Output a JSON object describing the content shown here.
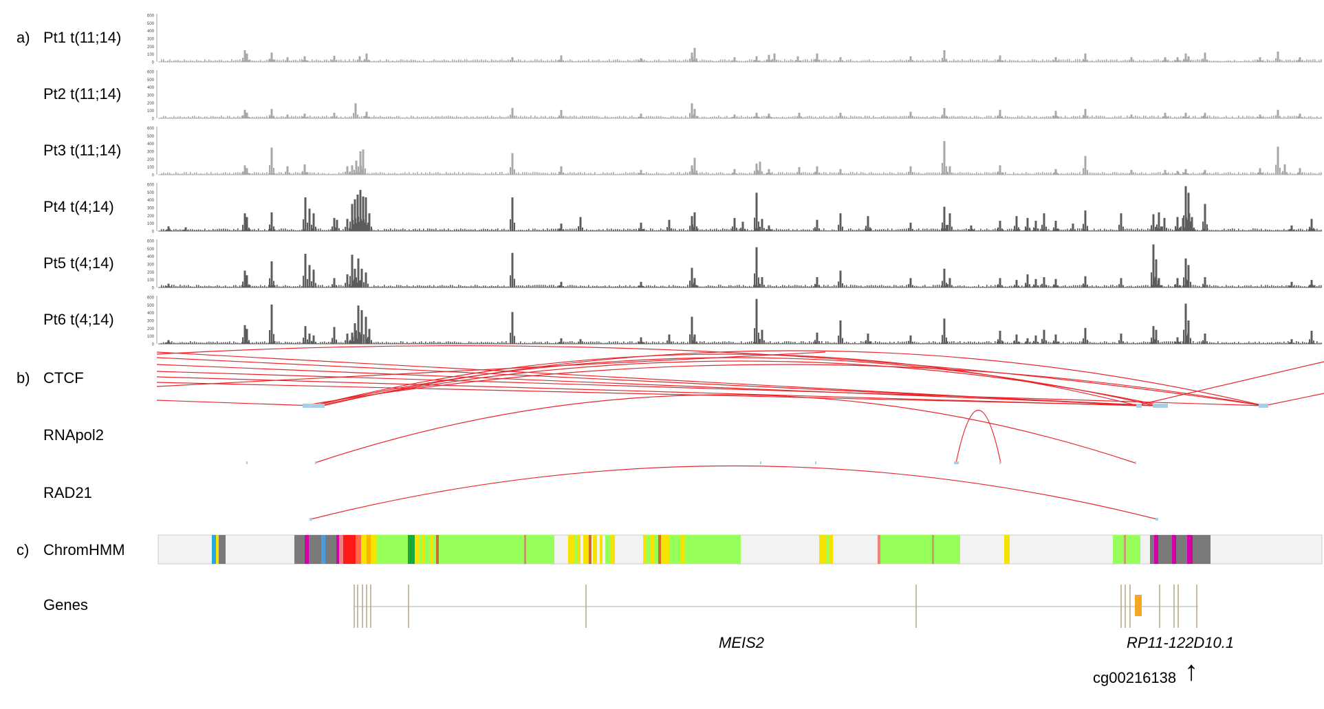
{
  "sections": {
    "a": "a)",
    "b": "b)",
    "c": "c)"
  },
  "tracks": [
    {
      "label": "Pt1 t(11;14)",
      "shade": "#a8a8a8"
    },
    {
      "label": "Pt2 t(11;14)",
      "shade": "#a8a8a8"
    },
    {
      "label": "Pt3 t(11;14)",
      "shade": "#a8a8a8"
    },
    {
      "label": "Pt4 t(4;14)",
      "shade": "#5c5c5c"
    },
    {
      "label": "Pt5 t(4;14)",
      "shade": "#5c5c5c"
    },
    {
      "label": "Pt6 t(4;14)",
      "shade": "#5c5c5c"
    }
  ],
  "track_ticks": [
    "0",
    "100",
    "200",
    "300",
    "400",
    "500",
    "600"
  ],
  "interaction_tracks": [
    "CTCF",
    "RNApol2",
    "RAD21"
  ],
  "chromhmm_label": "ChromHMM",
  "genes_label": "Genes",
  "gene_names": [
    "MEIS2",
    "RP11-122D10.1"
  ],
  "probe": {
    "label": "cg00216138",
    "arrow": "↑"
  },
  "colors": {
    "arc": "#e8252b",
    "anchor": "#a8cfe8",
    "axis": "#888888",
    "gene_line": "#bdbdbd",
    "gene_exon": "#b9a98a",
    "orange_gene": "#f5a623",
    "chromhmm_bg": "#f2f2f2"
  }
}
